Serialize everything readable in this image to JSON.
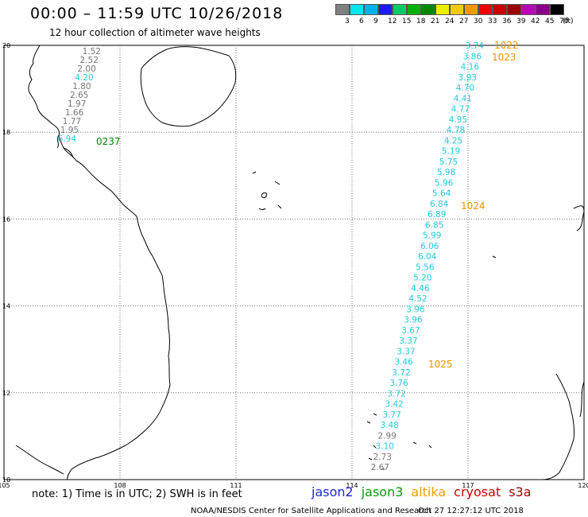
{
  "header": {
    "title": "00:00 – 11:59 UTC 10/26/2018",
    "subtitle": "12 hour collection of altimeter wave heights"
  },
  "scale": {
    "unit": "(ft)",
    "bins": [
      {
        "label": "3",
        "color": "#808080"
      },
      {
        "label": "6",
        "color": "#00e5ee"
      },
      {
        "label": "9",
        "color": "#00b2ee"
      },
      {
        "label": "12",
        "color": "#1c1cf0"
      },
      {
        "label": "15",
        "color": "#00cc66"
      },
      {
        "label": "18",
        "color": "#00b300"
      },
      {
        "label": "21",
        "color": "#008800"
      },
      {
        "label": "24",
        "color": "#eeee00"
      },
      {
        "label": "27",
        "color": "#eecc00"
      },
      {
        "label": "30",
        "color": "#ee9900"
      },
      {
        "label": "33",
        "color": "#ee0000"
      },
      {
        "label": "36",
        "color": "#c80000"
      },
      {
        "label": "39",
        "color": "#990000"
      },
      {
        "label": "42",
        "color": "#bb00bb"
      },
      {
        "label": "45",
        "color": "#880088"
      },
      {
        "label": "70",
        "color": "#000000"
      }
    ]
  },
  "map": {
    "lon_labels": [
      "105",
      "108",
      "111",
      "114",
      "117",
      "120"
    ],
    "lat_labels": [
      "20",
      "18",
      "16",
      "14",
      "12",
      "10"
    ],
    "tracks": [
      {
        "points": [
          {
            "v": "1.52",
            "c": "#777777"
          },
          {
            "v": "2.52",
            "c": "#777777"
          },
          {
            "v": "2.00",
            "c": "#777777"
          },
          {
            "v": "4.20",
            "c": "#22c8dd"
          },
          {
            "v": "1.80",
            "c": "#777777"
          },
          {
            "v": "2.65",
            "c": "#777777"
          },
          {
            "v": "1.97",
            "c": "#777777"
          },
          {
            "v": "1.66",
            "c": "#777777"
          },
          {
            "v": "1.77",
            "c": "#777777"
          },
          {
            "v": "1.95",
            "c": "#777777"
          },
          {
            "v": "6.94",
            "c": "#22c8dd"
          }
        ],
        "time_labels": [
          {
            "text": "0237",
            "color": "#008800"
          }
        ]
      },
      {
        "points": [
          {
            "v": "3.74",
            "c": "#22c8dd"
          },
          {
            "v": "3.86",
            "c": "#22c8dd"
          },
          {
            "v": "4.16",
            "c": "#22c8dd"
          },
          {
            "v": "3.93",
            "c": "#22c8dd"
          },
          {
            "v": "4.70",
            "c": "#22c8dd"
          },
          {
            "v": "4.41",
            "c": "#22c8dd"
          },
          {
            "v": "4.77",
            "c": "#22c8dd"
          },
          {
            "v": "4.95",
            "c": "#22c8dd"
          },
          {
            "v": "4.78",
            "c": "#22c8dd"
          },
          {
            "v": "4.25",
            "c": "#22c8dd"
          },
          {
            "v": "5.19",
            "c": "#22c8dd"
          },
          {
            "v": "5.75",
            "c": "#22c8dd"
          },
          {
            "v": "5.98",
            "c": "#22c8dd"
          },
          {
            "v": "5.96",
            "c": "#22c8dd"
          },
          {
            "v": "5.64",
            "c": "#22c8dd"
          },
          {
            "v": "6.84",
            "c": "#22c8dd"
          },
          {
            "v": "6.89",
            "c": "#22c8dd"
          },
          {
            "v": "6.85",
            "c": "#22c8dd"
          },
          {
            "v": "5.99",
            "c": "#22c8dd"
          },
          {
            "v": "6.06",
            "c": "#22c8dd"
          },
          {
            "v": "6.04",
            "c": "#22c8dd"
          },
          {
            "v": "5.56",
            "c": "#22c8dd"
          },
          {
            "v": "5.20",
            "c": "#22c8dd"
          },
          {
            "v": "4.46",
            "c": "#22c8dd"
          },
          {
            "v": "4.52",
            "c": "#22c8dd"
          },
          {
            "v": "3.96",
            "c": "#22c8dd"
          },
          {
            "v": "3.96",
            "c": "#22c8dd"
          },
          {
            "v": "3.67",
            "c": "#22c8dd"
          },
          {
            "v": "3.37",
            "c": "#22c8dd"
          },
          {
            "v": "3.37",
            "c": "#22c8dd"
          },
          {
            "v": "3.46",
            "c": "#22c8dd"
          },
          {
            "v": "3.72",
            "c": "#22c8dd"
          },
          {
            "v": "3.76",
            "c": "#22c8dd"
          },
          {
            "v": "3.72",
            "c": "#22c8dd"
          },
          {
            "v": "3.42",
            "c": "#22c8dd"
          },
          {
            "v": "3.77",
            "c": "#22c8dd"
          },
          {
            "v": "3.48",
            "c": "#22c8dd"
          },
          {
            "v": "2.99",
            "c": "#777777"
          },
          {
            "v": "3.10",
            "c": "#22c8dd"
          },
          {
            "v": "2.73",
            "c": "#777777"
          },
          {
            "v": "2.67",
            "c": "#777777"
          }
        ],
        "time_labels": [
          {
            "text": "1022",
            "color": "#f09000"
          },
          {
            "text": "1023",
            "color": "#f09000"
          },
          {
            "text": "1024",
            "color": "#f09000"
          },
          {
            "text": "1025",
            "color": "#f09000"
          }
        ]
      }
    ]
  },
  "footer": {
    "note": "note: 1) Time is in UTC; 2) SWH is in feet",
    "satellites": [
      "jason2",
      "jason3",
      "altika",
      "cryosat",
      "s3a"
    ],
    "credit": "NOAA/NESDIS Center for Satellite Applications and Research",
    "timestamp": "Oct 27 12:27:12 UTC 2018"
  }
}
